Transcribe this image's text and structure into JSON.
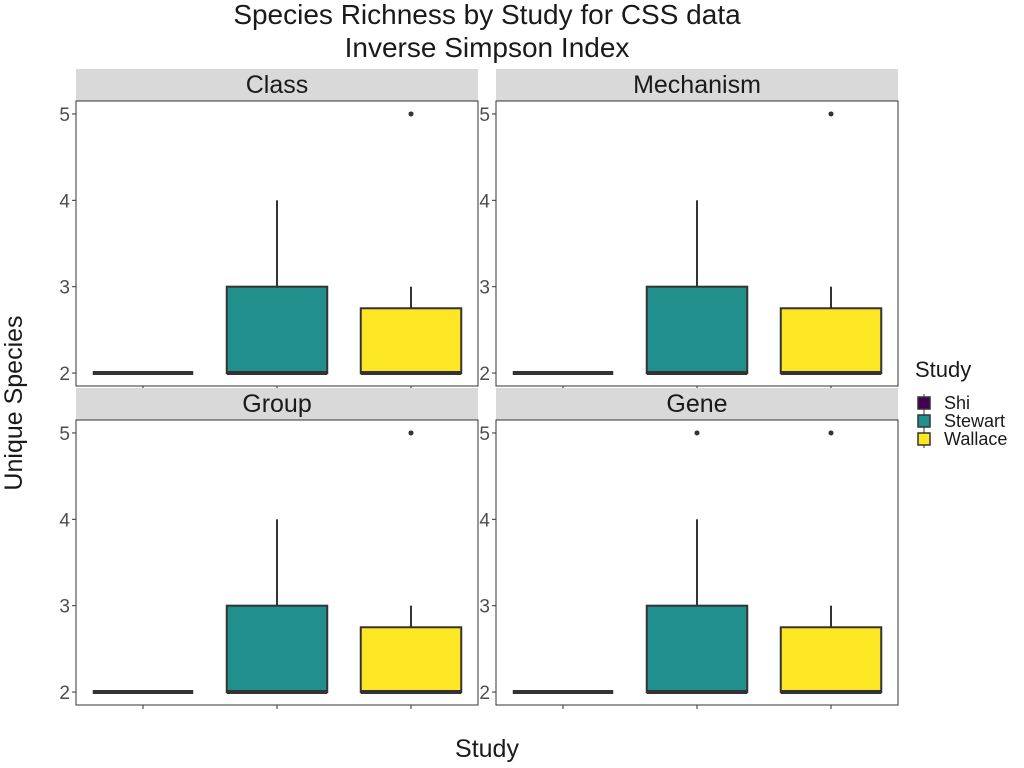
{
  "chart_data": {
    "type": "box",
    "title": "Species Richness by Study for CSS data",
    "subtitle": "Inverse Simpson Index",
    "xlabel": "Study",
    "ylabel": "Unique Species",
    "ylim": [
      1.85,
      5.15
    ],
    "y_ticks": [
      2,
      3,
      4,
      5
    ],
    "categories": [
      "Shi",
      "Stewart",
      "Wallace"
    ],
    "legend": {
      "title": "Study",
      "position": "right",
      "entries": [
        {
          "label": "Shi",
          "color": "#440154"
        },
        {
          "label": "Stewart",
          "color": "#21908C"
        },
        {
          "label": "Wallace",
          "color": "#FDE725"
        }
      ]
    },
    "panels": [
      {
        "name": "Class",
        "boxes": [
          {
            "study": "Shi",
            "min": 2,
            "q1": 2,
            "median": 2,
            "q3": 2,
            "max": 2,
            "outliers": []
          },
          {
            "study": "Stewart",
            "min": 2,
            "q1": 2,
            "median": 2,
            "q3": 3,
            "max": 4,
            "outliers": []
          },
          {
            "study": "Wallace",
            "min": 2,
            "q1": 2,
            "median": 2,
            "q3": 2.75,
            "max": 3,
            "outliers": [
              5
            ]
          }
        ]
      },
      {
        "name": "Mechanism",
        "boxes": [
          {
            "study": "Shi",
            "min": 2,
            "q1": 2,
            "median": 2,
            "q3": 2,
            "max": 2,
            "outliers": []
          },
          {
            "study": "Stewart",
            "min": 2,
            "q1": 2,
            "median": 2,
            "q3": 3,
            "max": 4,
            "outliers": []
          },
          {
            "study": "Wallace",
            "min": 2,
            "q1": 2,
            "median": 2,
            "q3": 2.75,
            "max": 3,
            "outliers": [
              5
            ]
          }
        ]
      },
      {
        "name": "Group",
        "boxes": [
          {
            "study": "Shi",
            "min": 2,
            "q1": 2,
            "median": 2,
            "q3": 2,
            "max": 2,
            "outliers": []
          },
          {
            "study": "Stewart",
            "min": 2,
            "q1": 2,
            "median": 2,
            "q3": 3,
            "max": 4,
            "outliers": []
          },
          {
            "study": "Wallace",
            "min": 2,
            "q1": 2,
            "median": 2,
            "q3": 2.75,
            "max": 3,
            "outliers": [
              5
            ]
          }
        ]
      },
      {
        "name": "Gene",
        "boxes": [
          {
            "study": "Shi",
            "min": 2,
            "q1": 2,
            "median": 2,
            "q3": 2,
            "max": 2,
            "outliers": []
          },
          {
            "study": "Stewart",
            "min": 2,
            "q1": 2,
            "median": 2,
            "q3": 3,
            "max": 4,
            "outliers": [
              5
            ]
          },
          {
            "study": "Wallace",
            "min": 2,
            "q1": 2,
            "median": 2,
            "q3": 2.75,
            "max": 3,
            "outliers": [
              5
            ]
          }
        ]
      }
    ]
  }
}
